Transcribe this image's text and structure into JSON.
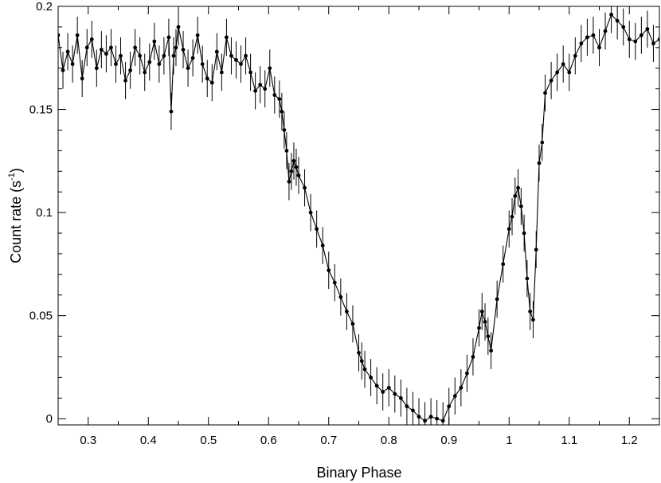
{
  "chart_data": {
    "type": "scatter",
    "xlabel": "Binary Phase",
    "ylabel": "Count rate (s",
    "ylabel_sup": "-1",
    "ylabel_close": ")",
    "xlim": [
      0.25,
      1.25
    ],
    "ylim": [
      -0.003,
      0.2
    ],
    "xticks": [
      0.3,
      0.4,
      0.5,
      0.6,
      0.7,
      0.8,
      0.9,
      1,
      1.1,
      1.2
    ],
    "yticks": [
      0,
      0.05,
      0.1,
      0.15,
      0.2
    ],
    "ytick_labels": [
      "0",
      "0.05",
      "0.1",
      "0.15",
      "0.2"
    ],
    "grid": false,
    "line_color": "#000000",
    "error_bar": 0.009,
    "series": [
      {
        "x": [
          0.25,
          0.258,
          0.266,
          0.274,
          0.282,
          0.29,
          0.298,
          0.306,
          0.314,
          0.322,
          0.33,
          0.338,
          0.346,
          0.354,
          0.362,
          0.37,
          0.378,
          0.386,
          0.394,
          0.402,
          0.41,
          0.418,
          0.426,
          0.434,
          0.438,
          0.442,
          0.446,
          0.45,
          0.458,
          0.466,
          0.474,
          0.482,
          0.49,
          0.498,
          0.506,
          0.514,
          0.522,
          0.53,
          0.538,
          0.546,
          0.554,
          0.562,
          0.57,
          0.578,
          0.586,
          0.594,
          0.602,
          0.61,
          0.618,
          0.622,
          0.626,
          0.63,
          0.634,
          0.638,
          0.642,
          0.646,
          0.65,
          0.66,
          0.67,
          0.68,
          0.69,
          0.7,
          0.71,
          0.72,
          0.73,
          0.74,
          0.75,
          0.755,
          0.76,
          0.77,
          0.78,
          0.79,
          0.8,
          0.81,
          0.82,
          0.83,
          0.84,
          0.85,
          0.86,
          0.87,
          0.88,
          0.89,
          0.9,
          0.91,
          0.92,
          0.93,
          0.94,
          0.95,
          0.955,
          0.96,
          0.965,
          0.97,
          0.98,
          0.99,
          1.0,
          1.005,
          1.01,
          1.015,
          1.02,
          1.025,
          1.03,
          1.035,
          1.04,
          1.045,
          1.05,
          1.055,
          1.06,
          1.07,
          1.08,
          1.09,
          1.1,
          1.11,
          1.12,
          1.13,
          1.14,
          1.15,
          1.16,
          1.17,
          1.18,
          1.19,
          1.2,
          1.21,
          1.22,
          1.23,
          1.24,
          1.25
        ],
        "y": [
          0.186,
          0.169,
          0.178,
          0.172,
          0.186,
          0.165,
          0.18,
          0.184,
          0.17,
          0.179,
          0.177,
          0.18,
          0.172,
          0.176,
          0.164,
          0.169,
          0.18,
          0.176,
          0.168,
          0.173,
          0.183,
          0.172,
          0.176,
          0.185,
          0.149,
          0.176,
          0.18,
          0.19,
          0.179,
          0.17,
          0.175,
          0.186,
          0.172,
          0.165,
          0.163,
          0.178,
          0.168,
          0.185,
          0.176,
          0.174,
          0.172,
          0.176,
          0.168,
          0.159,
          0.162,
          0.16,
          0.17,
          0.157,
          0.155,
          0.149,
          0.14,
          0.13,
          0.115,
          0.12,
          0.125,
          0.122,
          0.118,
          0.112,
          0.1,
          0.092,
          0.084,
          0.072,
          0.066,
          0.059,
          0.052,
          0.046,
          0.032,
          0.028,
          0.024,
          0.02,
          0.016,
          0.013,
          0.015,
          0.012,
          0.01,
          0.006,
          0.004,
          0.001,
          -0.001,
          0.001,
          0.0,
          -0.001,
          0.006,
          0.011,
          0.015,
          0.022,
          0.03,
          0.044,
          0.052,
          0.047,
          0.04,
          0.033,
          0.058,
          0.075,
          0.092,
          0.098,
          0.108,
          0.112,
          0.103,
          0.09,
          0.068,
          0.052,
          0.048,
          0.082,
          0.124,
          0.134,
          0.158,
          0.164,
          0.168,
          0.172,
          0.168,
          0.176,
          0.182,
          0.185,
          0.186,
          0.18,
          0.188,
          0.196,
          0.193,
          0.19,
          0.184,
          0.183,
          0.186,
          0.189,
          0.182,
          0.184
        ]
      }
    ]
  }
}
